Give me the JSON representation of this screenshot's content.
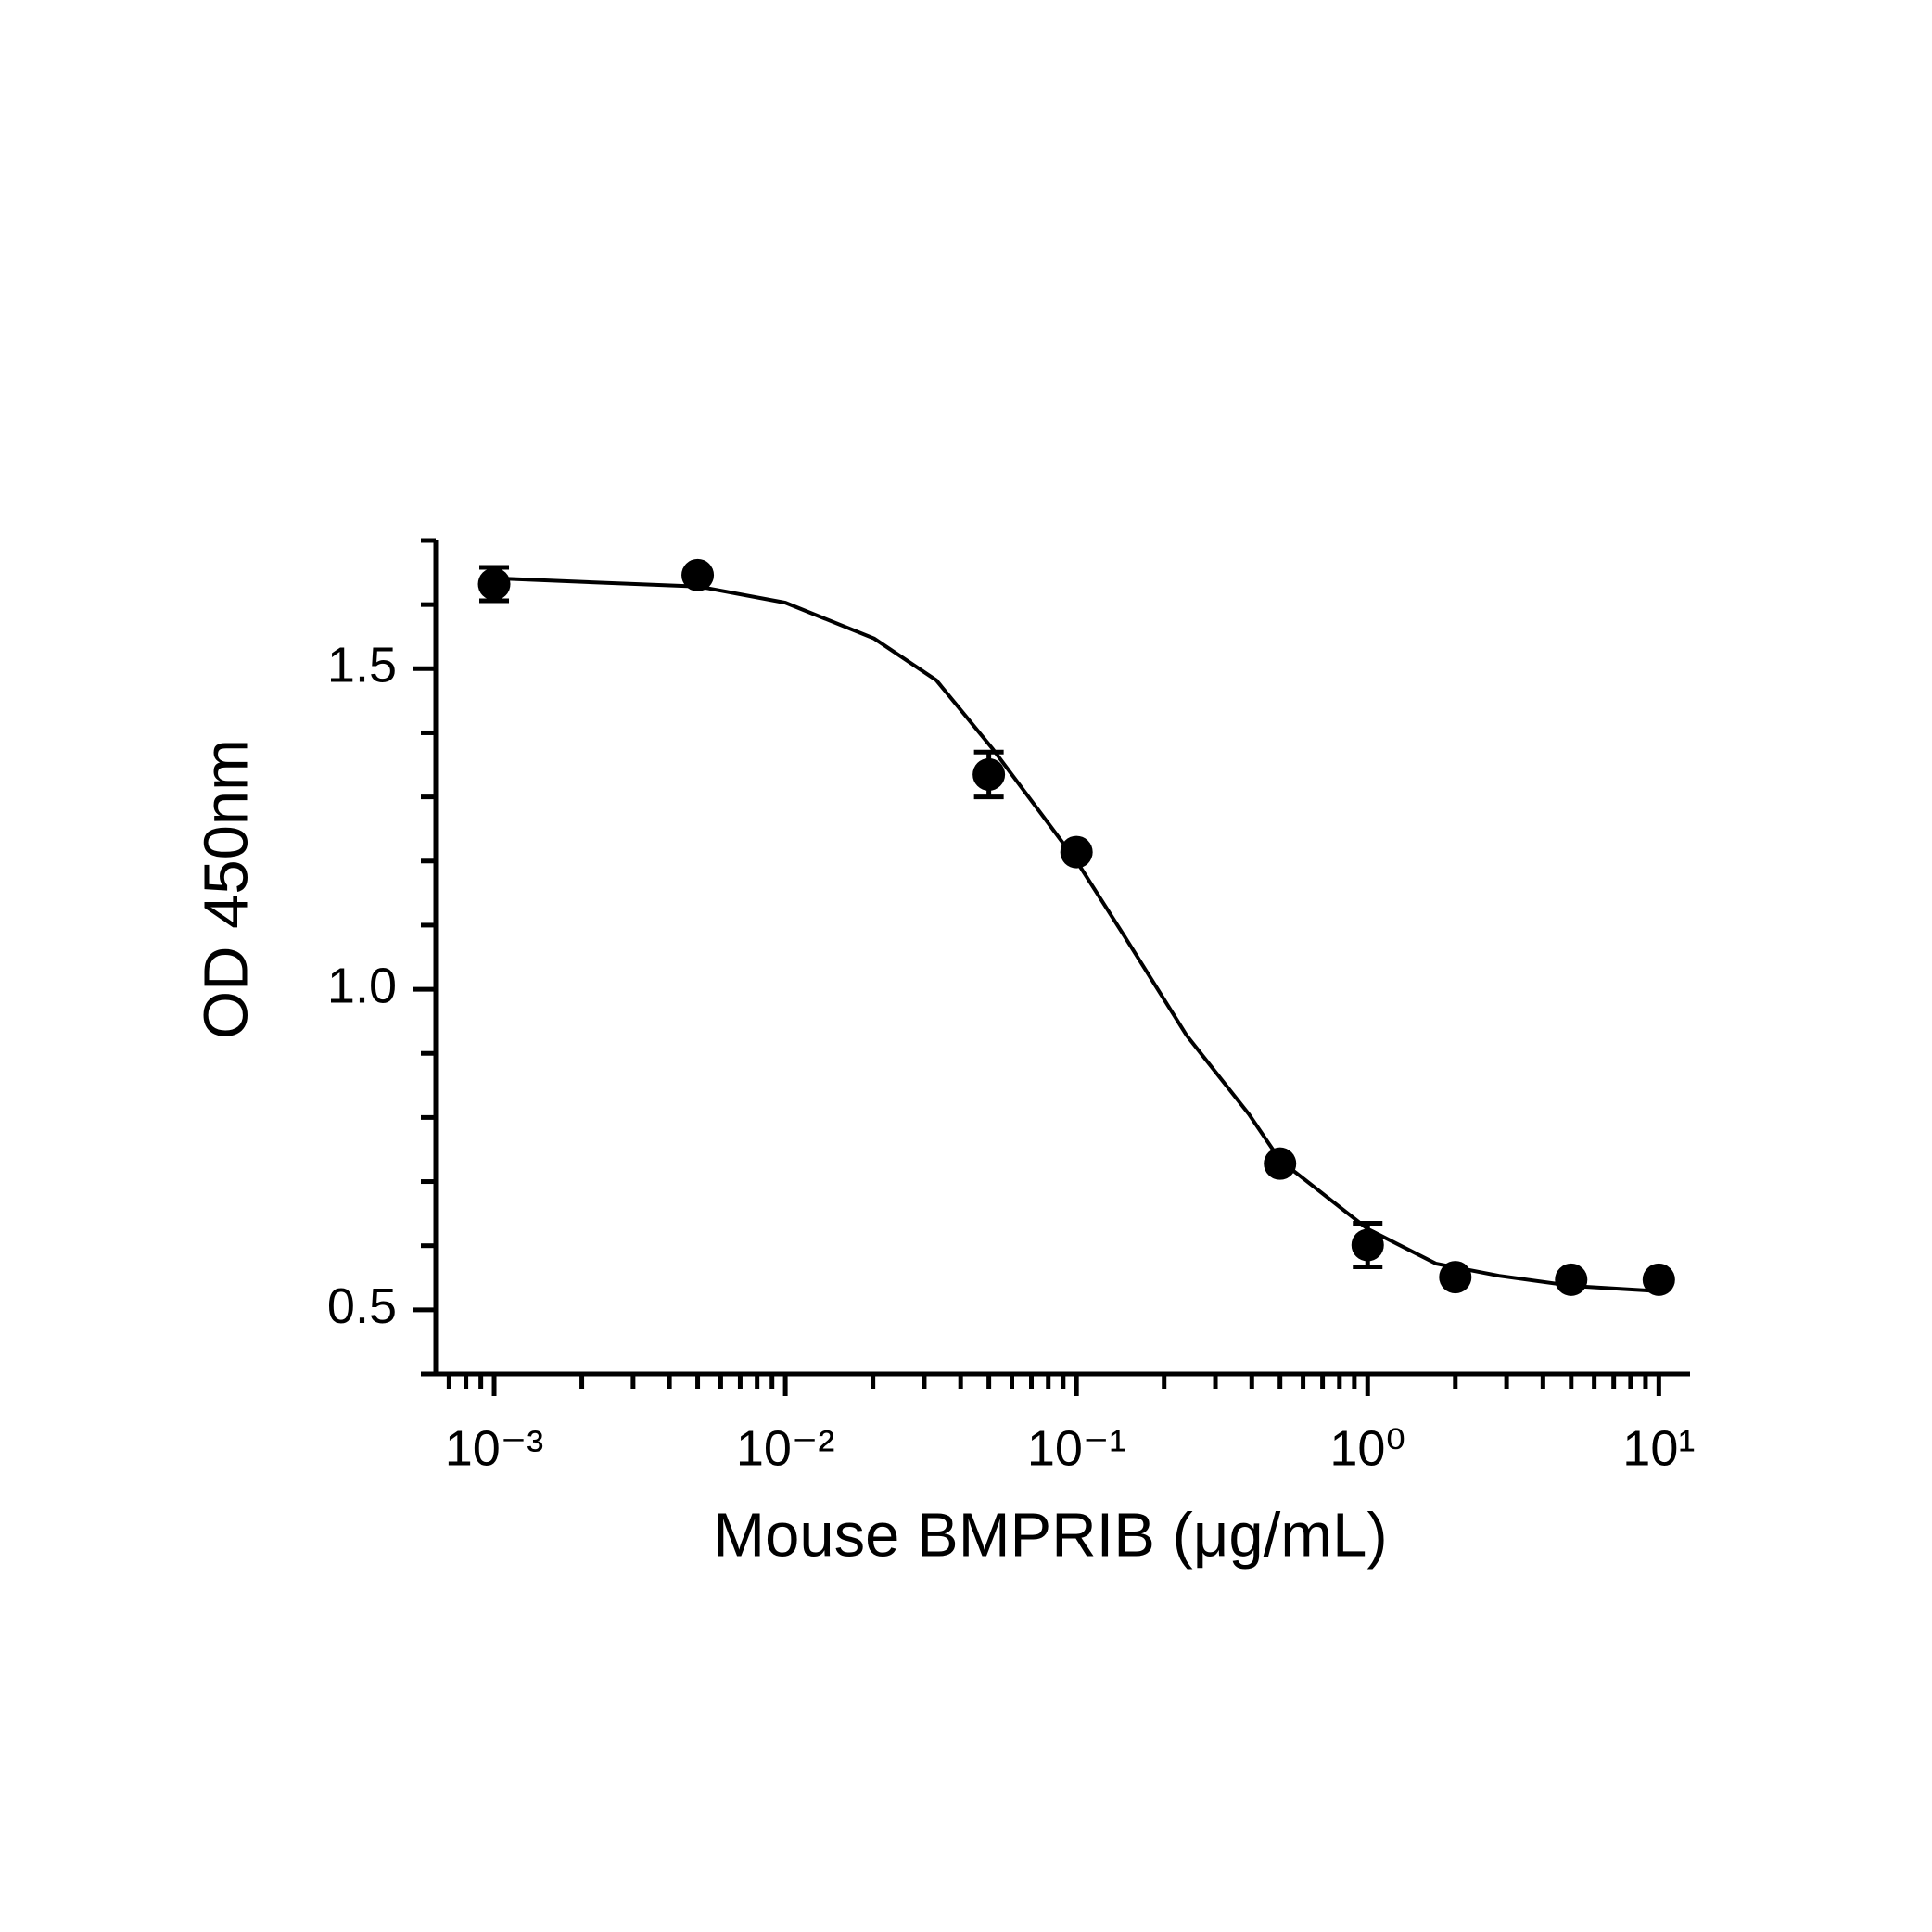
{
  "chart_data": {
    "type": "scatter",
    "x_label": "Mouse BMPRIB (μg/mL)",
    "y_label": "OD 450nm",
    "x_log": true,
    "color": "#000000",
    "x": [
      0.001,
      0.005,
      0.05,
      0.1,
      0.5,
      1,
      2,
      5,
      10
    ],
    "series": [
      {
        "values": [
          1.632,
          1.646,
          1.335,
          1.214,
          0.728,
          0.601,
          0.551,
          0.547,
          0.547
        ],
        "errors": [
          0.026,
          null,
          0.035,
          null,
          null,
          0.034,
          null,
          null,
          null
        ]
      }
    ],
    "fit": {
      "x": [
        0.001,
        0.00506,
        0.01,
        0.0202,
        0.033,
        0.0515,
        0.1,
        0.146,
        0.239,
        0.391,
        0.501,
        1,
        1.72,
        2.83,
        5.11,
        10
      ],
      "y": [
        1.641,
        1.628,
        1.603,
        1.547,
        1.482,
        1.375,
        1.2,
        1.083,
        0.928,
        0.805,
        0.733,
        0.626,
        0.572,
        0.553,
        0.537,
        0.529
      ]
    },
    "xlim": [
      0.00063,
      12.8
    ],
    "ylim": [
      0.4,
      1.7
    ],
    "xticks": [
      {
        "value": 0.001,
        "label": "10⁻³"
      },
      {
        "value": 0.01,
        "label": "10⁻²"
      },
      {
        "value": 0.1,
        "label": "10⁻¹"
      },
      {
        "value": 1,
        "label": "10⁰"
      },
      {
        "value": 10,
        "label": "10¹"
      }
    ],
    "xminorticks": [
      0.0007,
      0.0008,
      0.0009,
      0.002,
      0.003,
      0.004,
      0.005,
      0.006,
      0.007,
      0.008,
      0.009,
      0.02,
      0.03,
      0.04,
      0.05,
      0.06,
      0.07,
      0.08,
      0.09,
      0.2,
      0.3,
      0.4,
      0.5,
      0.6,
      0.7,
      0.8,
      0.9,
      2,
      3,
      4,
      5,
      6,
      7,
      8,
      9
    ],
    "yticks": [
      0.5,
      {
        "value": 1,
        "label": "1.0"
      },
      1.5
    ],
    "yminorticks": [
      0.4,
      0.6,
      0.7,
      0.8,
      0.9,
      1.1,
      1.2,
      1.3,
      1.4,
      1.6,
      1.7
    ]
  }
}
